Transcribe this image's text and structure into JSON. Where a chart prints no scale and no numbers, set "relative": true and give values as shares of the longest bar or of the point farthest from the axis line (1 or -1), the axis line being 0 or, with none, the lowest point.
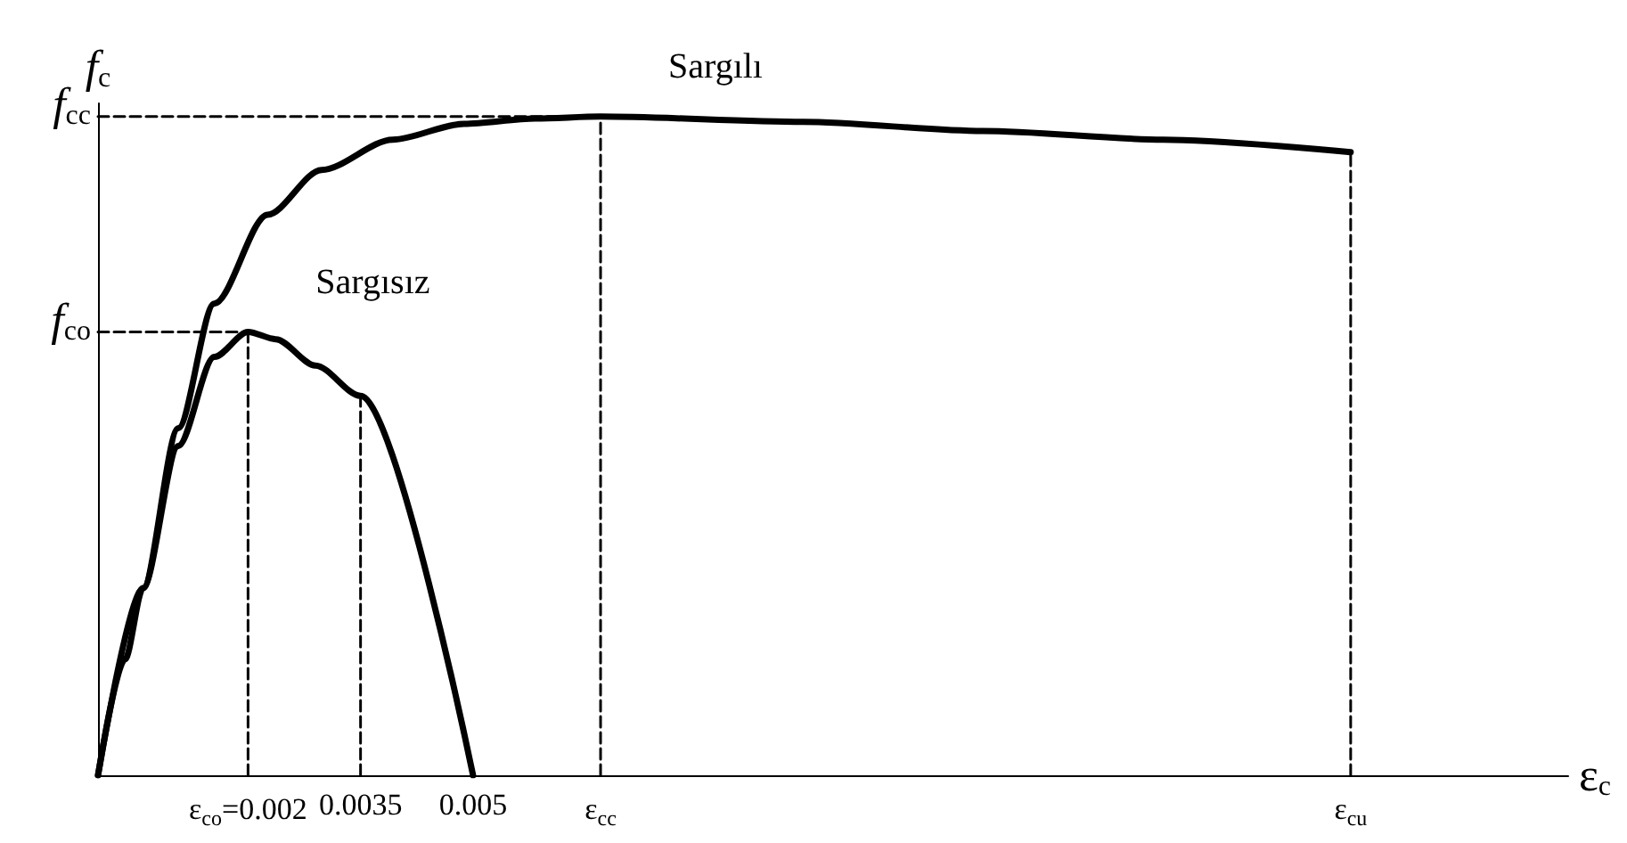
{
  "chart_data": {
    "type": "line",
    "relative": true,
    "xlabel": "ε$_{c}$",
    "ylabel": "f$_{c}$",
    "xlim": [
      0,
      0.0196
    ],
    "xticks": [
      {
        "value": 0.002,
        "label": "ε$_{co}$=0.002"
      },
      0.0035,
      0.005,
      {
        "value": 0.0067,
        "label": "ε$_{cc}$"
      },
      {
        "value": 0.0167,
        "label": "ε$_{cu}$"
      }
    ],
    "grid": false,
    "legend": false,
    "marker": "none",
    "annotations": [
      {
        "text": "f$_{cc}$",
        "x": 0,
        "y": 1
      },
      {
        "text": "f$_{co}$",
        "x": 0,
        "y": 0.673
      }
    ],
    "series": [
      {
        "name": "Sargılı",
        "color": "#000000",
        "x": [
          0,
          0.0006,
          0.00107,
          0.00155,
          0.00226,
          0.00298,
          0.00393,
          0.00488,
          0.00583,
          0.0067,
          0.0094,
          0.0118,
          0.0142,
          0.0167
        ],
        "values": [
          0,
          0.284,
          0.527,
          0.716,
          0.851,
          0.919,
          0.965,
          0.989,
          0.997,
          1,
          0.992,
          0.978,
          0.965,
          0.946
        ]
      },
      {
        "name": "Sargısız",
        "color": "#000000",
        "x": [
          0,
          0.00036,
          0.0006,
          0.00107,
          0.00155,
          0.002,
          0.00237,
          0.0029,
          0.0035,
          0.005
        ],
        "values": [
          0,
          0.176,
          0.284,
          0.5,
          0.635,
          0.673,
          0.662,
          0.622,
          0.576,
          0
        ]
      },
      {
        "color": "#000000",
        "line_style": "dashed",
        "x": [
          0,
          0.0067
        ],
        "values": [
          1,
          1
        ]
      },
      {
        "color": "#000000",
        "line_style": "dashed",
        "x": [
          0,
          0.002
        ],
        "values": [
          0.673,
          0.673
        ]
      },
      {
        "color": "#000000",
        "line_style": "dashed",
        "x": [
          0.002,
          0.002
        ],
        "values": [
          0,
          0.673
        ]
      },
      {
        "color": "#000000",
        "line_style": "dashed",
        "x": [
          0.0035,
          0.0035
        ],
        "values": [
          0,
          0.576
        ]
      },
      {
        "color": "#000000",
        "line_style": "dashed",
        "x": [
          0.0067,
          0.0067
        ],
        "values": [
          0,
          1
        ]
      },
      {
        "color": "#000000",
        "line_style": "dashed",
        "x": [
          0.0167,
          0.0167
        ],
        "values": [
          0,
          0.946
        ]
      }
    ]
  }
}
